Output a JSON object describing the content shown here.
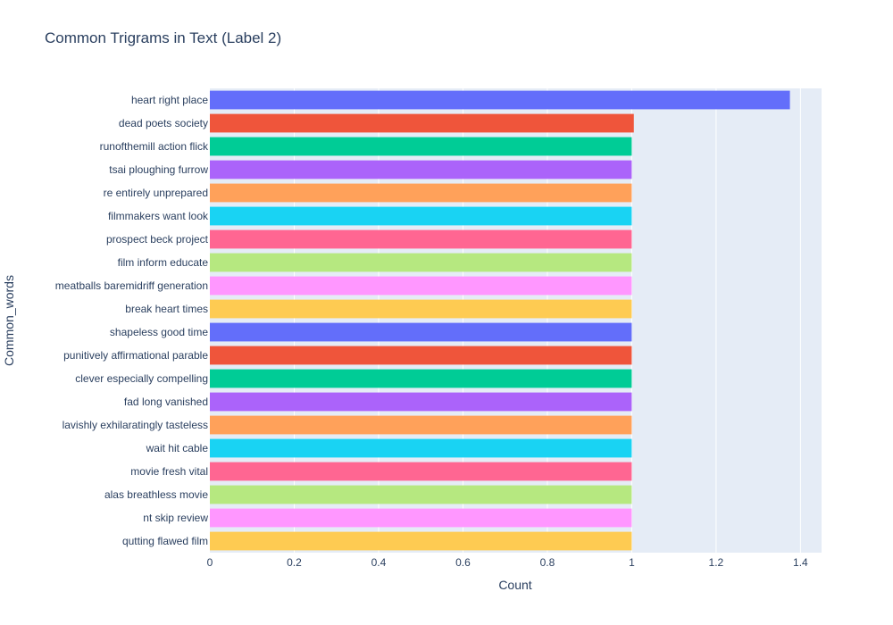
{
  "chart_data": {
    "type": "bar",
    "orientation": "horizontal",
    "title": "Common Trigrams in Text (Label 2)",
    "xlabel": "Count",
    "ylabel": "Common_words",
    "xlim": [
      0,
      1.45
    ],
    "x_ticks": [
      "0",
      "0.2",
      "0.4",
      "0.6",
      "0.8",
      "1",
      "1.2",
      "1.4"
    ],
    "x_tick_values": [
      0,
      0.2,
      0.4,
      0.6,
      0.8,
      1,
      1.2,
      1.4
    ],
    "grid": true,
    "categories": [
      "heart right place",
      "dead poets society",
      "runofthemill action flick",
      "tsai ploughing furrow",
      "re entirely unprepared",
      "filmmakers want look",
      "prospect beck project",
      "film inform educate",
      "meatballs baremidriff generation",
      "break heart times",
      "shapeless good time",
      "punitively affirmational parable",
      "clever especially compelling",
      "fad long vanished",
      "lavishly exhilaratingly tasteless",
      "wait hit cable",
      "movie fresh vital",
      "alas breathless movie",
      "nt skip review",
      "qutting flawed film"
    ],
    "values": [
      1.375,
      1.005,
      1,
      1,
      1,
      1,
      1,
      1,
      1,
      1,
      1,
      1,
      1,
      1,
      1,
      1,
      1,
      1,
      1,
      1
    ],
    "colors": [
      "#636efa",
      "#ef553b",
      "#00cc96",
      "#ab63fa",
      "#ffa15a",
      "#19d3f3",
      "#ff6692",
      "#b6e880",
      "#ff97ff",
      "#fecb52",
      "#636efa",
      "#ef553b",
      "#00cc96",
      "#ab63fa",
      "#ffa15a",
      "#19d3f3",
      "#ff6692",
      "#b6e880",
      "#ff97ff",
      "#fecb52"
    ],
    "plot_background": "#e5ecf6",
    "grid_color": "#ffffff",
    "text_color": "#2a3f5f"
  }
}
